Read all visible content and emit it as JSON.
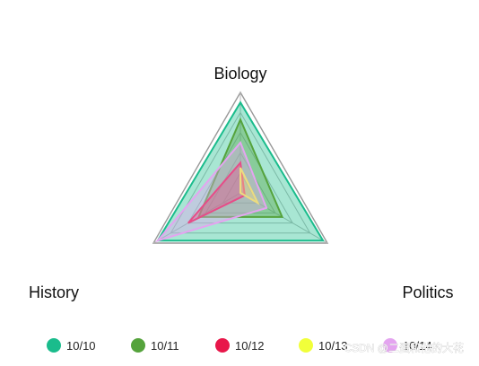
{
  "chart_data": {
    "type": "radar",
    "indicators": [
      {
        "name": "Biology",
        "max": 100
      },
      {
        "name": "Politics",
        "max": 100
      },
      {
        "name": "History",
        "max": 100
      }
    ],
    "series": [
      {
        "name": "10/10",
        "color": "#1abc8c",
        "values": [
          90,
          95,
          95
        ]
      },
      {
        "name": "10/11",
        "color": "#55a33c",
        "values": [
          73,
          48,
          48
        ]
      },
      {
        "name": "10/12",
        "color": "#e8174a",
        "values": [
          30,
          5,
          60
        ]
      },
      {
        "name": "10/13",
        "color": "#f1ff3a",
        "values": [
          25,
          20,
          0
        ]
      },
      {
        "name": "10/14",
        "color": "#e4a4f0",
        "values": [
          50,
          30,
          95
        ]
      }
    ],
    "split_number": 5,
    "legend_position": "bottom"
  },
  "watermark": "CSDN @二蛋和他的大花"
}
